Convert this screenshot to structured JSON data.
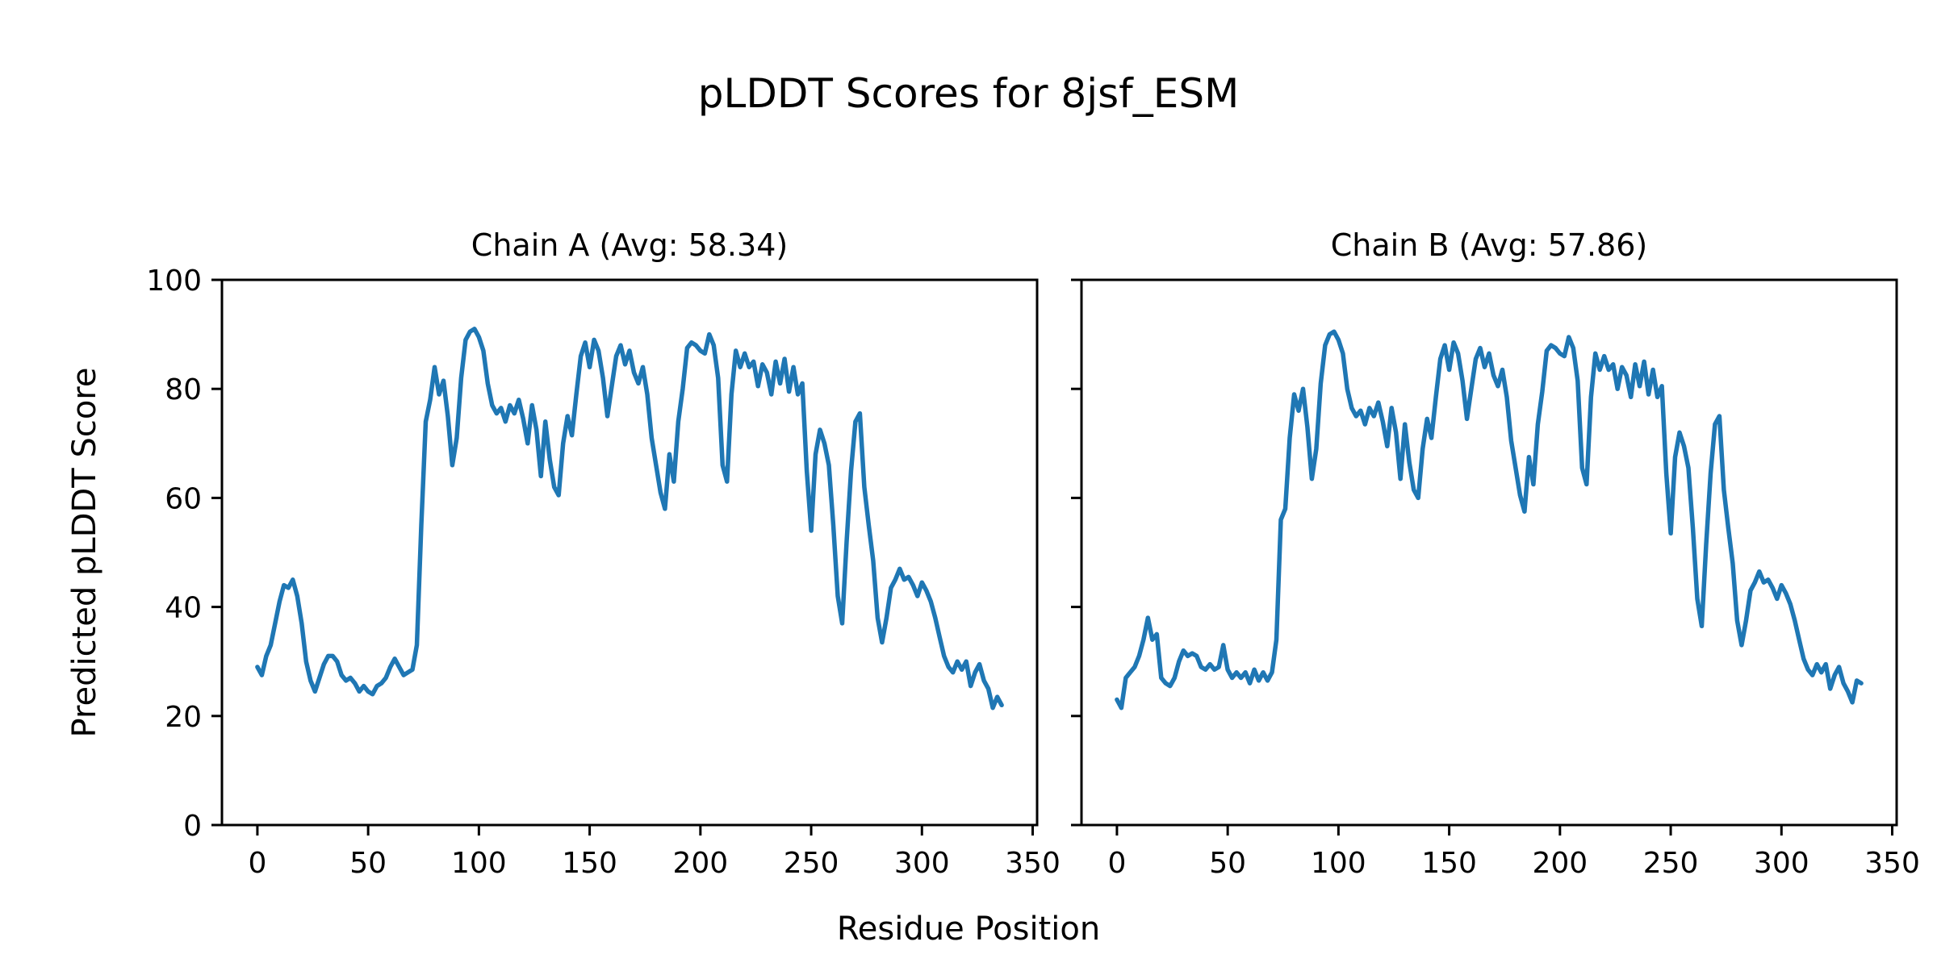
{
  "figure": {
    "title": "pLDDT Scores for 8jsf_ESM",
    "xlabel": "Residue Position",
    "ylabel": "Predicted pLDDT Score",
    "background_color": "#ffffff",
    "line_color": "#1f77b4",
    "frame_color": "#000000"
  },
  "chart_data": [
    {
      "type": "line",
      "chain": "A",
      "title": "Chain A (Avg: 58.34)",
      "avg": 58.34,
      "xlabel": "Residue Position",
      "ylabel": "Predicted pLDDT Score",
      "xlim": [
        -16,
        352
      ],
      "ylim": [
        0,
        100
      ],
      "xticks": [
        0,
        50,
        100,
        150,
        200,
        250,
        300,
        350
      ],
      "yticks": [
        0,
        20,
        40,
        60,
        80,
        100
      ],
      "grid": false,
      "legend": false,
      "x_start": 0,
      "x_step": 2,
      "values": [
        29,
        27.5,
        31,
        33,
        37,
        41,
        44,
        43.5,
        45,
        42,
        37,
        30,
        26.5,
        24.5,
        27,
        29.5,
        31,
        31,
        30,
        27.5,
        26.5,
        27,
        26,
        24.5,
        25.5,
        24.5,
        24,
        25.5,
        26,
        27,
        29,
        30.5,
        29,
        27.5,
        28,
        28.5,
        33,
        55,
        74,
        78,
        84,
        79,
        81.5,
        75,
        66,
        71,
        82,
        89,
        90.5,
        91,
        89.5,
        87,
        81,
        77,
        75.5,
        76.5,
        74,
        77,
        75.5,
        78,
        74.5,
        70,
        77,
        72.5,
        64,
        74,
        67,
        62,
        60.5,
        70,
        75,
        71.5,
        79,
        86,
        88.5,
        84,
        89,
        87,
        82,
        75,
        80.5,
        86,
        88,
        84.5,
        87,
        83,
        81,
        84,
        79,
        71,
        66,
        61,
        58,
        68,
        63,
        74,
        80,
        87.5,
        88.5,
        88,
        87,
        86.5,
        90,
        88,
        82,
        66,
        63,
        79,
        87,
        84,
        86.5,
        84,
        85,
        80.5,
        84.5,
        83,
        79,
        85,
        81,
        85.5,
        79.5,
        84,
        79,
        81,
        65,
        54,
        68,
        72.5,
        70,
        66,
        55,
        42,
        37,
        52,
        65,
        74,
        75.5,
        62,
        55,
        48.5,
        38,
        33.5,
        38,
        43.5,
        45,
        47,
        45,
        45.5,
        44,
        42,
        44.5,
        43,
        41,
        38,
        34.5,
        31,
        29,
        28,
        30,
        28.5,
        30,
        25.5,
        28,
        29.5,
        26.5,
        25,
        21.5,
        23.5,
        22
      ]
    },
    {
      "type": "line",
      "chain": "B",
      "title": "Chain B (Avg: 57.86)",
      "avg": 57.86,
      "xlabel": "Residue Position",
      "ylabel": "Predicted pLDDT Score",
      "xlim": [
        -16,
        352
      ],
      "ylim": [
        0,
        100
      ],
      "xticks": [
        0,
        50,
        100,
        150,
        200,
        250,
        300,
        350
      ],
      "yticks": [
        0,
        20,
        40,
        60,
        80,
        100
      ],
      "grid": false,
      "legend": false,
      "x_start": 0,
      "x_step": 2,
      "values": [
        23,
        21.5,
        27,
        28,
        29,
        31,
        34,
        38,
        34,
        35,
        27,
        26,
        25.5,
        27,
        30,
        32,
        31,
        31.5,
        31,
        29,
        28.5,
        29.5,
        28.5,
        29,
        33,
        28.5,
        27,
        28,
        27,
        28,
        26,
        28.5,
        26.5,
        28,
        26.5,
        28,
        34,
        56,
        58,
        71,
        79,
        76,
        80,
        73,
        63.5,
        69,
        81,
        88,
        90,
        90.5,
        89,
        86.5,
        80,
        76.5,
        75,
        76,
        73.5,
        76.5,
        75,
        77.5,
        74,
        69.5,
        76.5,
        72,
        63.5,
        73.5,
        66.5,
        61.5,
        60,
        69,
        74.5,
        71,
        78.5,
        85.5,
        88,
        83.5,
        88.5,
        86.5,
        81.5,
        74.5,
        80,
        85.5,
        87.5,
        84,
        86.5,
        82.5,
        80.5,
        83.5,
        78.5,
        70.5,
        65.5,
        60.5,
        57.5,
        67.5,
        62.5,
        73.5,
        79.5,
        87,
        88,
        87.5,
        86.5,
        86,
        89.5,
        87.5,
        81.5,
        65.5,
        62.5,
        78.5,
        86.5,
        83.5,
        86,
        83.5,
        84.5,
        80,
        84,
        82.5,
        78.5,
        84.5,
        80.5,
        85,
        79,
        83.5,
        78.5,
        80.5,
        64.5,
        53.5,
        67.5,
        72,
        69.5,
        65.5,
        54.5,
        41.5,
        36.5,
        51.5,
        64.5,
        73.5,
        75,
        61.5,
        54.5,
        48,
        37.5,
        33,
        37.5,
        43,
        44.5,
        46.5,
        44.5,
        45,
        43.5,
        41.5,
        44,
        42.5,
        40.5,
        37.5,
        34,
        30.5,
        28.5,
        27.5,
        29.5,
        28,
        29.5,
        25,
        27.5,
        29,
        26,
        24.5,
        22.5,
        26.5,
        26
      ]
    }
  ]
}
